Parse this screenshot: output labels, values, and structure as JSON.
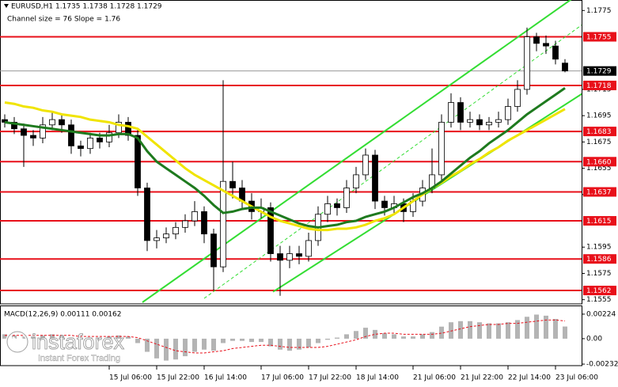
{
  "chart_data": {
    "type": "candlestick",
    "title": "EURUSD,H1  1.1735 1.1738 1.1728 1.1729",
    "subtitle": "Channel size = 76 Slope = 1.76",
    "categories": [
      null,
      null,
      null,
      null,
      null,
      null,
      null,
      null,
      null,
      null,
      null,
      "15 Jul 06:00",
      null,
      null,
      null,
      null,
      "15 Jul 22:00",
      null,
      null,
      null,
      null,
      "16 Jul 14:00",
      null,
      null,
      null,
      null,
      null,
      "17 Jul 06:00",
      null,
      null,
      null,
      null,
      "17 Jul 22:00",
      null,
      null,
      null,
      null,
      "18 Jul 14:00",
      null,
      null,
      null,
      null,
      null,
      "21 Jul 06:00",
      null,
      null,
      null,
      null,
      "21 Jul 22:00",
      null,
      null,
      null,
      null,
      "22 Jul 14:00",
      null,
      null,
      null,
      null,
      "23 Jul 06:00",
      null
    ],
    "open": [
      1.1692,
      1.169,
      1.1685,
      1.168,
      1.1678,
      1.1688,
      1.1692,
      1.1688,
      1.1672,
      1.167,
      1.1678,
      1.1675,
      1.1682,
      1.169,
      1.168,
      1.164,
      1.16,
      1.1602,
      1.1605,
      1.161,
      1.1615,
      1.1622,
      1.1605,
      1.158,
      1.1645,
      1.164,
      1.163,
      1.1622,
      1.1625,
      1.159,
      1.1585,
      1.159,
      1.1588,
      1.16,
      1.162,
      1.1628,
      1.1625,
      1.164,
      1.165,
      1.1665,
      1.163,
      1.1625,
      1.1628,
      1.1622,
      1.163,
      1.164,
      1.165,
      1.169,
      1.1705,
      1.169,
      1.1692,
      1.1688,
      1.169,
      1.1692,
      1.1702,
      1.1715,
      1.1755,
      1.175,
      1.1748,
      1.1735
    ],
    "high": [
      1.1696,
      1.1694,
      1.1689,
      1.1684,
      1.1694,
      1.1698,
      1.1696,
      1.1692,
      1.1676,
      1.1682,
      1.1682,
      1.1688,
      1.1696,
      1.1694,
      1.1684,
      1.1644,
      1.1608,
      1.161,
      1.1614,
      1.162,
      1.163,
      1.1626,
      1.1609,
      1.1722,
      1.166,
      1.1646,
      1.1636,
      1.1632,
      1.1629,
      1.1596,
      1.1596,
      1.1596,
      1.1606,
      1.1626,
      1.1634,
      1.1632,
      1.1646,
      1.1656,
      1.167,
      1.1669,
      1.1634,
      1.1634,
      1.1632,
      1.1636,
      1.1646,
      1.167,
      1.1696,
      1.1712,
      1.1709,
      1.1698,
      1.1696,
      1.1694,
      1.1698,
      1.1708,
      1.1722,
      1.1762,
      1.1758,
      1.1756,
      1.1752,
      1.1738
    ],
    "low": [
      1.1686,
      1.1681,
      1.1656,
      1.1672,
      1.1674,
      1.1684,
      1.1682,
      1.1666,
      1.1664,
      1.1666,
      1.167,
      1.1671,
      1.1678,
      1.1676,
      1.1634,
      1.1592,
      1.1594,
      1.1598,
      1.1601,
      1.1606,
      1.1611,
      1.1598,
      1.1562,
      1.1576,
      1.1632,
      1.1624,
      1.1616,
      1.1617,
      1.1584,
      1.1558,
      1.1579,
      1.1582,
      1.1584,
      1.1596,
      1.1614,
      1.1619,
      1.1621,
      1.1636,
      1.1646,
      1.1624,
      1.1619,
      1.162,
      1.1614,
      1.1618,
      1.1626,
      1.1636,
      1.1646,
      1.1686,
      1.1684,
      1.1686,
      1.1684,
      1.1684,
      1.1686,
      1.1688,
      1.1698,
      1.1711,
      1.1744,
      1.1742,
      1.1734,
      1.1728
    ],
    "close": [
      1.169,
      1.1685,
      1.168,
      1.1678,
      1.1688,
      1.1692,
      1.1688,
      1.1672,
      1.167,
      1.1678,
      1.1675,
      1.1682,
      1.169,
      1.168,
      1.164,
      1.16,
      1.1602,
      1.1605,
      1.161,
      1.1615,
      1.1622,
      1.1605,
      1.158,
      1.1645,
      1.164,
      1.163,
      1.1622,
      1.1625,
      1.159,
      1.1585,
      1.159,
      1.1588,
      1.16,
      1.162,
      1.1628,
      1.1625,
      1.164,
      1.165,
      1.1665,
      1.163,
      1.1625,
      1.1628,
      1.1622,
      1.163,
      1.164,
      1.165,
      1.169,
      1.1705,
      1.169,
      1.1692,
      1.1688,
      1.169,
      1.1692,
      1.1702,
      1.1715,
      1.1755,
      1.175,
      1.1748,
      1.1738,
      1.1729
    ],
    "candle_color": "#000000",
    "bull_fill": "#ffffff",
    "bear_fill": "#000000",
    "ylim": [
      1.1553,
      1.1783
    ],
    "yticks": [
      1.1775,
      1.1715,
      1.1695,
      1.1675,
      1.1655,
      1.1635,
      1.1595,
      1.1575,
      1.1555
    ],
    "series": [
      {
        "color": "#f0e400",
        "values": [
          1.1705,
          1.1704,
          1.1702,
          1.1701,
          1.1699,
          1.1698,
          1.1696,
          1.1695,
          1.1694,
          1.1692,
          1.1691,
          1.169,
          1.1688,
          1.1687,
          1.1685,
          1.1679,
          1.1673,
          1.1667,
          1.1661,
          1.1655,
          1.165,
          1.1646,
          1.1642,
          1.1638,
          1.1634,
          1.163,
          1.1626,
          1.1622,
          1.1618,
          1.1615,
          1.1613,
          1.1611,
          1.1609,
          1.1608,
          1.1608,
          1.1609,
          1.1609,
          1.161,
          1.1612,
          1.1615,
          1.1617,
          1.162,
          1.1625,
          1.163,
          1.1635,
          1.164,
          1.1644,
          1.1649,
          1.1653,
          1.1658,
          1.1662,
          1.1667,
          1.1671,
          1.1676,
          1.168,
          1.1684,
          1.1688,
          1.1692,
          1.1696,
          1.17
        ]
      },
      {
        "color": "#1e7a1e",
        "values": [
          1.169,
          1.1689,
          1.1688,
          1.1687,
          1.1686,
          1.1685,
          1.1684,
          1.1683,
          1.1682,
          1.1681,
          1.168,
          1.168,
          1.1681,
          1.1681,
          1.1678,
          1.1668,
          1.166,
          1.1655,
          1.165,
          1.1645,
          1.164,
          1.1634,
          1.1627,
          1.1621,
          1.1622,
          1.1624,
          1.1625,
          1.1625,
          1.1622,
          1.1619,
          1.1616,
          1.1613,
          1.1611,
          1.161,
          1.1611,
          1.1612,
          1.1614,
          1.1615,
          1.1618,
          1.162,
          1.1622,
          1.1625,
          1.1629,
          1.1633,
          1.1636,
          1.164,
          1.1645,
          1.1651,
          1.1657,
          1.1663,
          1.1668,
          1.1674,
          1.1679,
          1.1684,
          1.169,
          1.1696,
          1.1701,
          1.1706,
          1.1711,
          1.1716
        ]
      }
    ],
    "levels": [
      1.1755,
      1.1718,
      1.1683,
      {
        "value": 1.166,
        "label": "1.1660"
      },
      1.1637,
      1.1615,
      1.1586,
      1.1562
    ],
    "level_color": "#e8101a",
    "last_price": 1.1729,
    "channel": {
      "color": "#33dd33",
      "upper": [
        {
          "x": 14.5,
          "y": 1.1553
        },
        {
          "x": 57.8,
          "y": 1.1774
        }
      ],
      "middle": [
        {
          "x": 21,
          "y": 1.1556
        },
        {
          "x": 60,
          "y": 1.176
        }
      ],
      "lower": [
        {
          "x": 28.25,
          "y": 1.1561
        },
        {
          "x": 63.25,
          "y": 1.1723
        }
      ]
    },
    "macd": {
      "title": "MACD(12,26,9) 0.00111 0.00162",
      "histogram_color": "#b4b4b4",
      "signal_color": "#e8101a",
      "histogram": [
        0.0004,
        0.0003,
        0.0002,
        0.0002,
        0.0003,
        0.0004,
        0.0003,
        0.0001,
        0,
        0.0001,
        0.0001,
        0.0002,
        0.0003,
        0.0002,
        -0.0004,
        -0.0012,
        -0.0018,
        -0.002,
        -0.0019,
        -0.0016,
        -0.0012,
        -0.001,
        -0.0011,
        -0.0004,
        -0.0002,
        -0.0002,
        -0.0003,
        -0.0003,
        -0.0007,
        -0.001,
        -0.0011,
        -0.001,
        -0.0008,
        -0.0004,
        -0.0001,
        0.0001,
        0.0004,
        0.0007,
        0.001,
        0.0008,
        0.0005,
        0.0004,
        0.0002,
        0.0002,
        0.0004,
        0.0006,
        0.0011,
        0.0015,
        0.0016,
        0.0016,
        0.0015,
        0.0014,
        0.0014,
        0.0015,
        0.0017,
        0.002,
        0.0022,
        0.0021,
        0.0018,
        0.00111
      ],
      "signal": [
        0.0003,
        0.0003,
        0.0003,
        0.0003,
        0.0003,
        0.0003,
        0.0003,
        0.0003,
        0.0002,
        0.0002,
        0.0002,
        0.0002,
        0.0002,
        0.0002,
        0.0001,
        -0.0002,
        -0.0005,
        -0.0008,
        -0.0011,
        -0.0012,
        -0.0013,
        -0.0013,
        -0.0012,
        -0.0011,
        -0.0009,
        -0.0008,
        -0.0007,
        -0.0006,
        -0.0006,
        -0.0007,
        -0.0008,
        -0.0008,
        -0.0008,
        -0.0008,
        -0.0007,
        -0.0005,
        -0.0003,
        -0.0001,
        0.0002,
        0.0004,
        0.0005,
        0.0005,
        0.0004,
        0.0004,
        0.0004,
        0.0004,
        0.0005,
        0.0007,
        0.0009,
        0.0011,
        0.0012,
        0.0013,
        0.0013,
        0.0014,
        0.0014,
        0.0015,
        0.0016,
        0.0017,
        0.0017,
        0.00162
      ],
      "ylim": [
        -0.00246,
        0.00303
      ],
      "yticks": [
        0.00224,
        {
          "value": 0,
          "label": "0.00"
        },
        -0.00232
      ]
    },
    "watermark": {
      "brand": "instaforex",
      "tagline": "Instant Forex Trading"
    }
  }
}
